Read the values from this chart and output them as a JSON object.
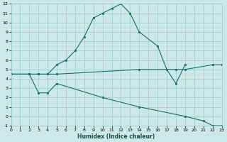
{
  "xlabel": "Humidex (Indice chaleur)",
  "bg_color": "#cce8e8",
  "grid_color": "#99cccc",
  "line_color": "#1a6b6b",
  "xlim": [
    0,
    23
  ],
  "ylim": [
    -1,
    12
  ],
  "xticks": [
    0,
    1,
    2,
    3,
    4,
    5,
    6,
    7,
    8,
    9,
    10,
    11,
    12,
    13,
    14,
    15,
    16,
    17,
    18,
    19,
    20,
    21,
    22,
    23
  ],
  "yticks": [
    -1,
    0,
    1,
    2,
    3,
    4,
    5,
    6,
    7,
    8,
    9,
    10,
    11,
    12
  ],
  "line1_x": [
    0,
    2,
    3,
    4,
    5,
    6,
    7,
    8,
    9,
    10,
    11,
    12,
    13,
    14,
    16,
    17,
    18,
    19
  ],
  "line1_y": [
    4.5,
    4.5,
    4.5,
    4.5,
    5.5,
    6.0,
    7.0,
    8.5,
    10.5,
    11.0,
    11.5,
    12.0,
    11.0,
    9.0,
    7.5,
    5.0,
    3.5,
    5.5
  ],
  "line2_x": [
    0,
    2,
    3,
    4,
    5,
    14,
    18,
    19,
    22,
    23
  ],
  "line2_y": [
    4.5,
    4.5,
    4.5,
    4.5,
    4.5,
    5.0,
    5.0,
    5.0,
    5.5,
    5.5
  ],
  "line3_x": [
    0,
    2,
    3,
    4,
    5,
    10,
    14,
    19,
    21,
    22,
    23
  ],
  "line3_y": [
    4.5,
    4.5,
    2.5,
    2.5,
    3.5,
    2.0,
    1.0,
    0.0,
    -0.5,
    -1.0,
    -1.0
  ]
}
